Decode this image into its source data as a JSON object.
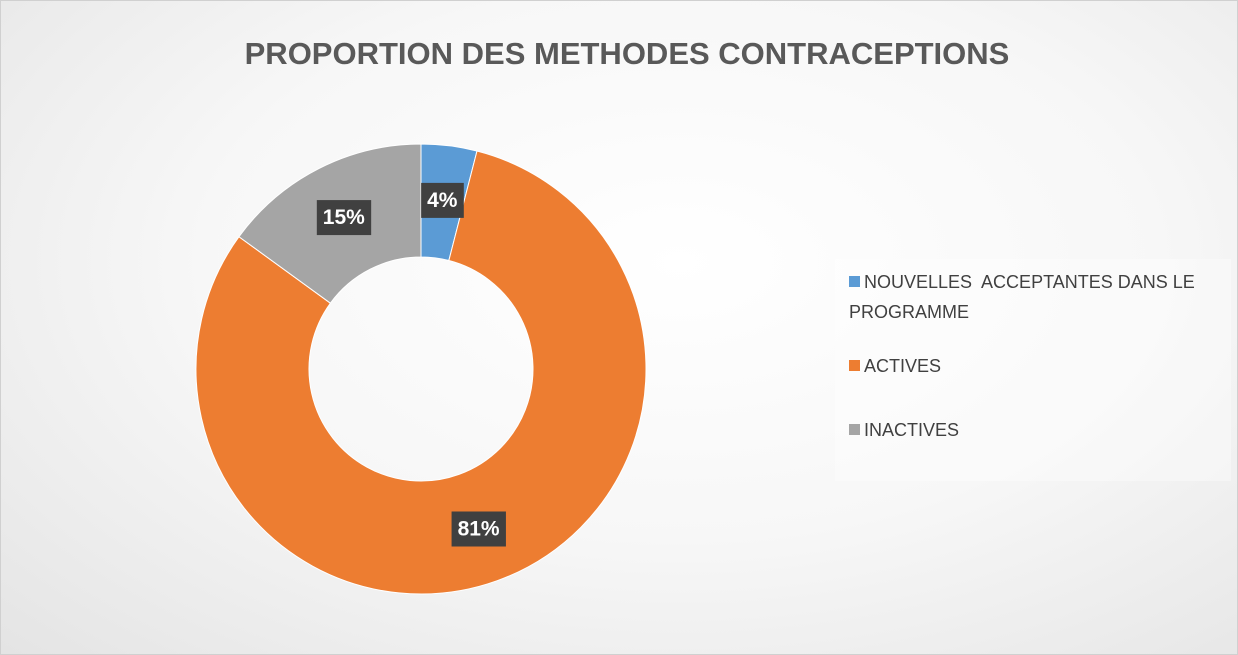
{
  "chart_data": {
    "type": "doughnut",
    "title": "PROPORTION DES METHODES CONTRACEPTIONS",
    "categories": [
      "NOUVELLES  ACCEPTANTES DANS LE PROGRAMME",
      "ACTIVES",
      "INACTIVES"
    ],
    "values": [
      4,
      81,
      15
    ],
    "value_labels": [
      "4%",
      "81%",
      "15%"
    ],
    "colors": [
      "#5b9bd5",
      "#ed7d31",
      "#a5a5a5"
    ],
    "legend": "right"
  }
}
